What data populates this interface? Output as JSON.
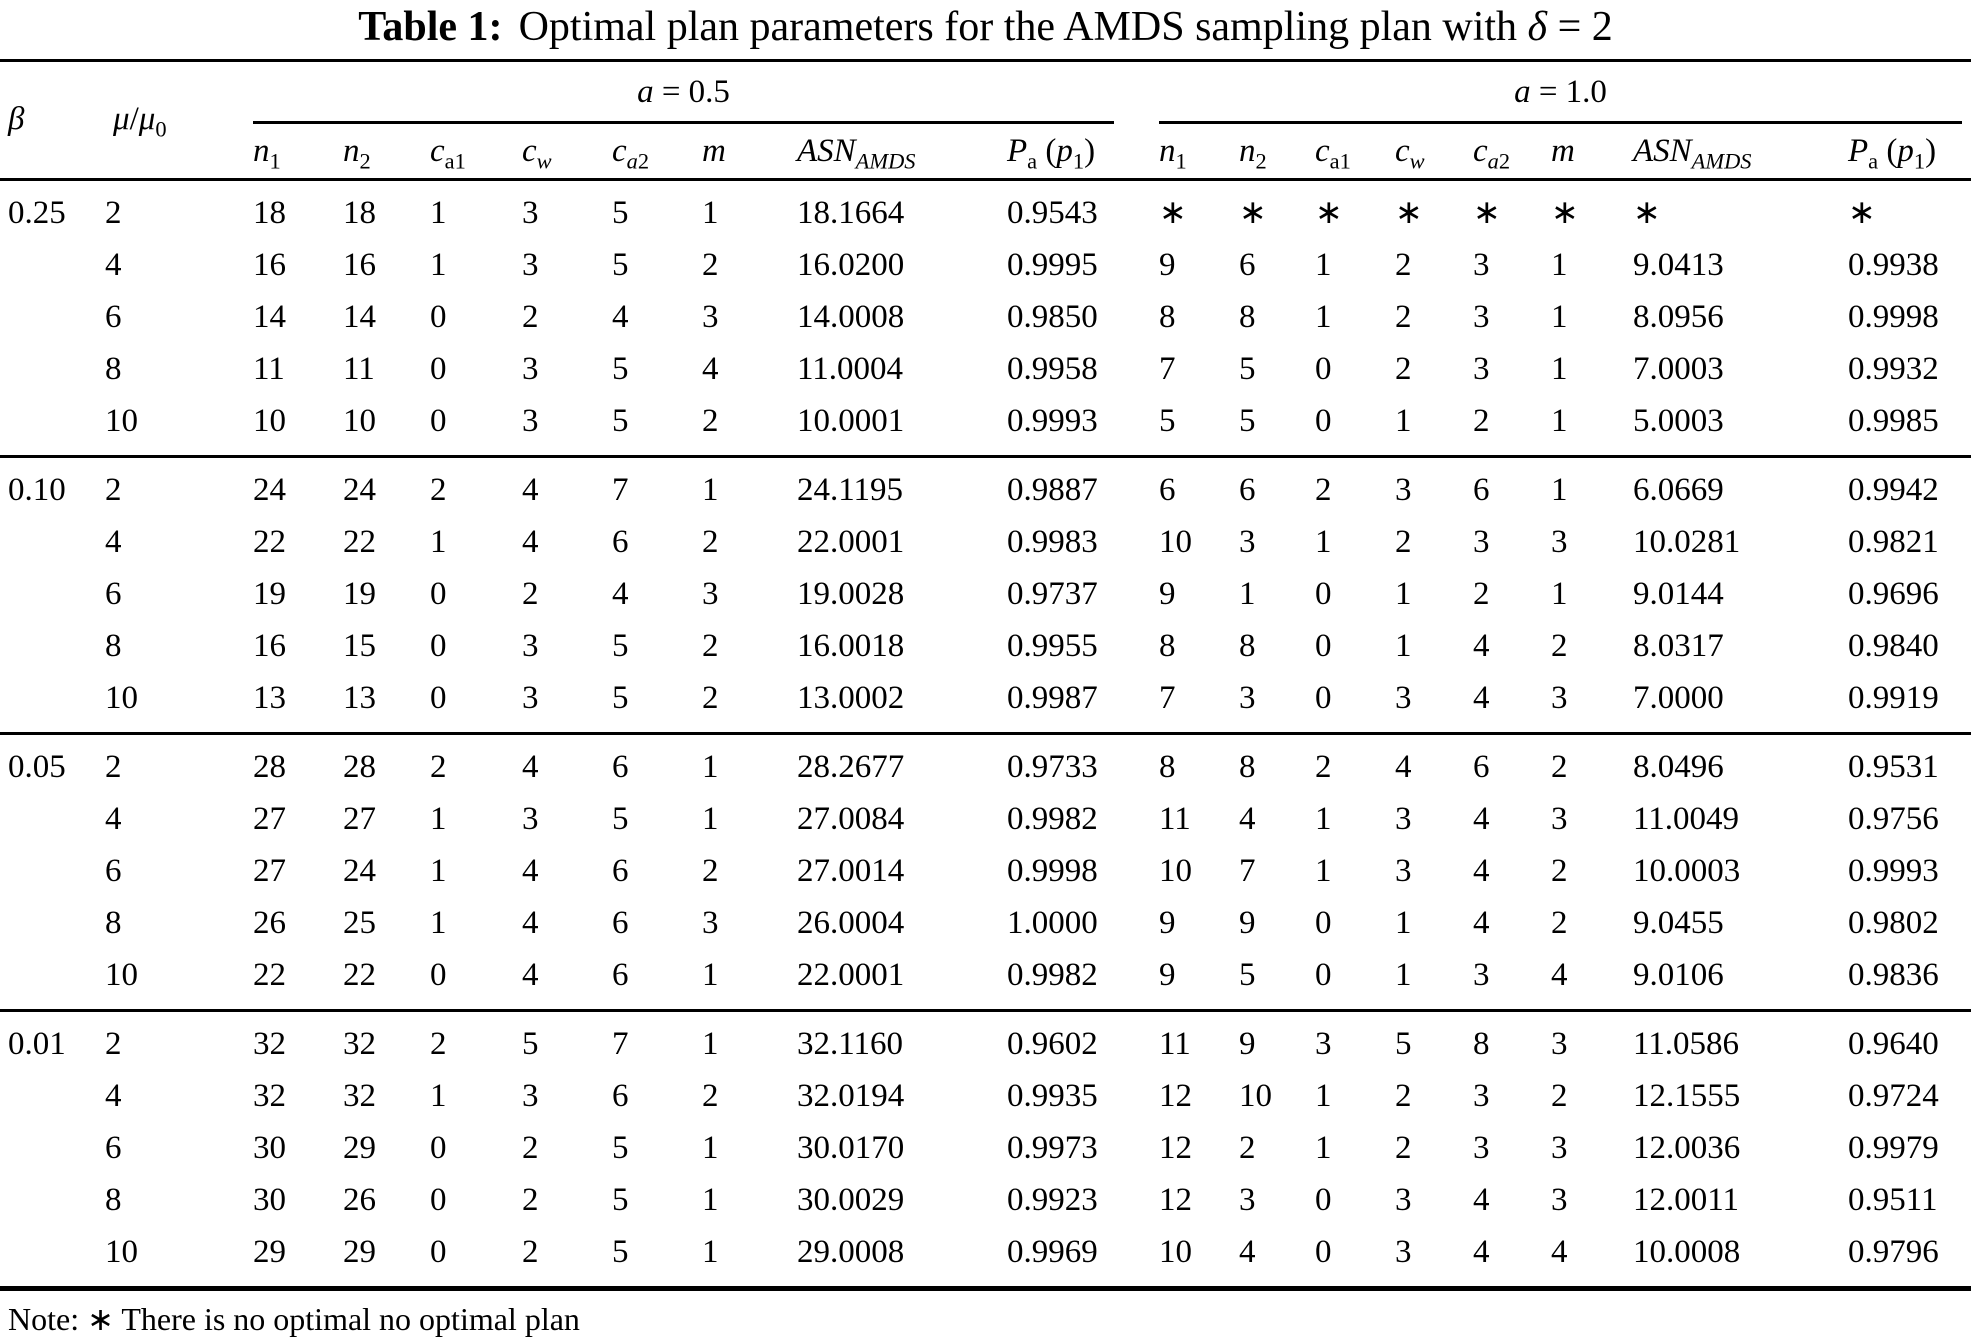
{
  "title": {
    "label": "Table 1:",
    "text_html": "Optimal plan parameters for the AMDS sampling plan with <i>δ</i> = 2"
  },
  "header": {
    "beta_html": "<i>β</i>",
    "mu_ratio_html": "<i>μ</i>/<i>μ</i><sub>0</sub>",
    "groups": [
      {
        "label_html": "<i>a</i> = 0.5"
      },
      {
        "label_html": "<i>a</i> = 1.0"
      }
    ],
    "column_keys": [
      "n1",
      "n2",
      "ca1",
      "cw",
      "ca2",
      "m",
      "asn-amds",
      "pa-p1"
    ],
    "columns_html": [
      "<i>n</i><sub>1</sub>",
      "<i>n</i><sub>2</sub>",
      "<i>c</i><sub>a1</sub>",
      "<i>c</i><sub><i>w</i></sub>",
      "<i>c</i><sub><i>a</i>2</sub>",
      "<i>m</i>",
      "<i>ASN</i><sub><i>AMDS</i></sub>",
      "<i>P</i><sub>a</sub> (<i>p</i><sub>1</sub>)"
    ]
  },
  "blocks": [
    {
      "beta": "0.25",
      "rows": [
        {
          "mu": "2",
          "a05": [
            "18",
            "18",
            "1",
            "3",
            "5",
            "1",
            "18.1664",
            "0.9543"
          ],
          "a10": [
            "∗",
            "∗",
            "∗",
            "∗",
            "∗",
            "∗",
            "∗",
            "∗"
          ]
        },
        {
          "mu": "4",
          "a05": [
            "16",
            "16",
            "1",
            "3",
            "5",
            "2",
            "16.0200",
            "0.9995"
          ],
          "a10": [
            "9",
            "6",
            "1",
            "2",
            "3",
            "1",
            "9.0413",
            "0.9938"
          ]
        },
        {
          "mu": "6",
          "a05": [
            "14",
            "14",
            "0",
            "2",
            "4",
            "3",
            "14.0008",
            "0.9850"
          ],
          "a10": [
            "8",
            "8",
            "1",
            "2",
            "3",
            "1",
            "8.0956",
            "0.9998"
          ]
        },
        {
          "mu": "8",
          "a05": [
            "11",
            "11",
            "0",
            "3",
            "5",
            "4",
            "11.0004",
            "0.9958"
          ],
          "a10": [
            "7",
            "5",
            "0",
            "2",
            "3",
            "1",
            "7.0003",
            "0.9932"
          ]
        },
        {
          "mu": "10",
          "a05": [
            "10",
            "10",
            "0",
            "3",
            "5",
            "2",
            "10.0001",
            "0.9993"
          ],
          "a10": [
            "5",
            "5",
            "0",
            "1",
            "2",
            "1",
            "5.0003",
            "0.9985"
          ]
        }
      ]
    },
    {
      "beta": "0.10",
      "rows": [
        {
          "mu": "2",
          "a05": [
            "24",
            "24",
            "2",
            "4",
            "7",
            "1",
            "24.1195",
            "0.9887"
          ],
          "a10": [
            "6",
            "6",
            "2",
            "3",
            "6",
            "1",
            "6.0669",
            "0.9942"
          ]
        },
        {
          "mu": "4",
          "a05": [
            "22",
            "22",
            "1",
            "4",
            "6",
            "2",
            "22.0001",
            "0.9983"
          ],
          "a10": [
            "10",
            "3",
            "1",
            "2",
            "3",
            "3",
            "10.0281",
            "0.9821"
          ]
        },
        {
          "mu": "6",
          "a05": [
            "19",
            "19",
            "0",
            "2",
            "4",
            "3",
            "19.0028",
            "0.9737"
          ],
          "a10": [
            "9",
            "1",
            "0",
            "1",
            "2",
            "1",
            "9.0144",
            "0.9696"
          ]
        },
        {
          "mu": "8",
          "a05": [
            "16",
            "15",
            "0",
            "3",
            "5",
            "2",
            "16.0018",
            "0.9955"
          ],
          "a10": [
            "8",
            "8",
            "0",
            "1",
            "4",
            "2",
            "8.0317",
            "0.9840"
          ]
        },
        {
          "mu": "10",
          "a05": [
            "13",
            "13",
            "0",
            "3",
            "5",
            "2",
            "13.0002",
            "0.9987"
          ],
          "a10": [
            "7",
            "3",
            "0",
            "3",
            "4",
            "3",
            "7.0000",
            "0.9919"
          ]
        }
      ]
    },
    {
      "beta": "0.05",
      "rows": [
        {
          "mu": "2",
          "a05": [
            "28",
            "28",
            "2",
            "4",
            "6",
            "1",
            "28.2677",
            "0.9733"
          ],
          "a10": [
            "8",
            "8",
            "2",
            "4",
            "6",
            "2",
            "8.0496",
            "0.9531"
          ]
        },
        {
          "mu": "4",
          "a05": [
            "27",
            "27",
            "1",
            "3",
            "5",
            "1",
            "27.0084",
            "0.9982"
          ],
          "a10": [
            "11",
            "4",
            "1",
            "3",
            "4",
            "3",
            "11.0049",
            "0.9756"
          ]
        },
        {
          "mu": "6",
          "a05": [
            "27",
            "24",
            "1",
            "4",
            "6",
            "2",
            "27.0014",
            "0.9998"
          ],
          "a10": [
            "10",
            "7",
            "1",
            "3",
            "4",
            "2",
            "10.0003",
            "0.9993"
          ]
        },
        {
          "mu": "8",
          "a05": [
            "26",
            "25",
            "1",
            "4",
            "6",
            "3",
            "26.0004",
            "1.0000"
          ],
          "a10": [
            "9",
            "9",
            "0",
            "1",
            "4",
            "2",
            "9.0455",
            "0.9802"
          ]
        },
        {
          "mu": "10",
          "a05": [
            "22",
            "22",
            "0",
            "4",
            "6",
            "1",
            "22.0001",
            "0.9982"
          ],
          "a10": [
            "9",
            "5",
            "0",
            "1",
            "3",
            "4",
            "9.0106",
            "0.9836"
          ]
        }
      ]
    },
    {
      "beta": "0.01",
      "rows": [
        {
          "mu": "2",
          "a05": [
            "32",
            "32",
            "2",
            "5",
            "7",
            "1",
            "32.1160",
            "0.9602"
          ],
          "a10": [
            "11",
            "9",
            "3",
            "5",
            "8",
            "3",
            "11.0586",
            "0.9640"
          ]
        },
        {
          "mu": "4",
          "a05": [
            "32",
            "32",
            "1",
            "3",
            "6",
            "2",
            "32.0194",
            "0.9935"
          ],
          "a10": [
            "12",
            "10",
            "1",
            "2",
            "3",
            "2",
            "12.1555",
            "0.9724"
          ]
        },
        {
          "mu": "6",
          "a05": [
            "30",
            "29",
            "0",
            "2",
            "5",
            "1",
            "30.0170",
            "0.9973"
          ],
          "a10": [
            "12",
            "2",
            "1",
            "2",
            "3",
            "3",
            "12.0036",
            "0.9979"
          ]
        },
        {
          "mu": "8",
          "a05": [
            "30",
            "26",
            "0",
            "2",
            "5",
            "1",
            "30.0029",
            "0.9923"
          ],
          "a10": [
            "12",
            "3",
            "0",
            "3",
            "4",
            "3",
            "12.0011",
            "0.9511"
          ]
        },
        {
          "mu": "10",
          "a05": [
            "29",
            "29",
            "0",
            "2",
            "5",
            "1",
            "29.0008",
            "0.9969"
          ],
          "a10": [
            "10",
            "4",
            "0",
            "3",
            "4",
            "4",
            "10.0008",
            "0.9796"
          ]
        }
      ]
    }
  ],
  "note": "Note: ∗ There is no optimal no optimal plan"
}
